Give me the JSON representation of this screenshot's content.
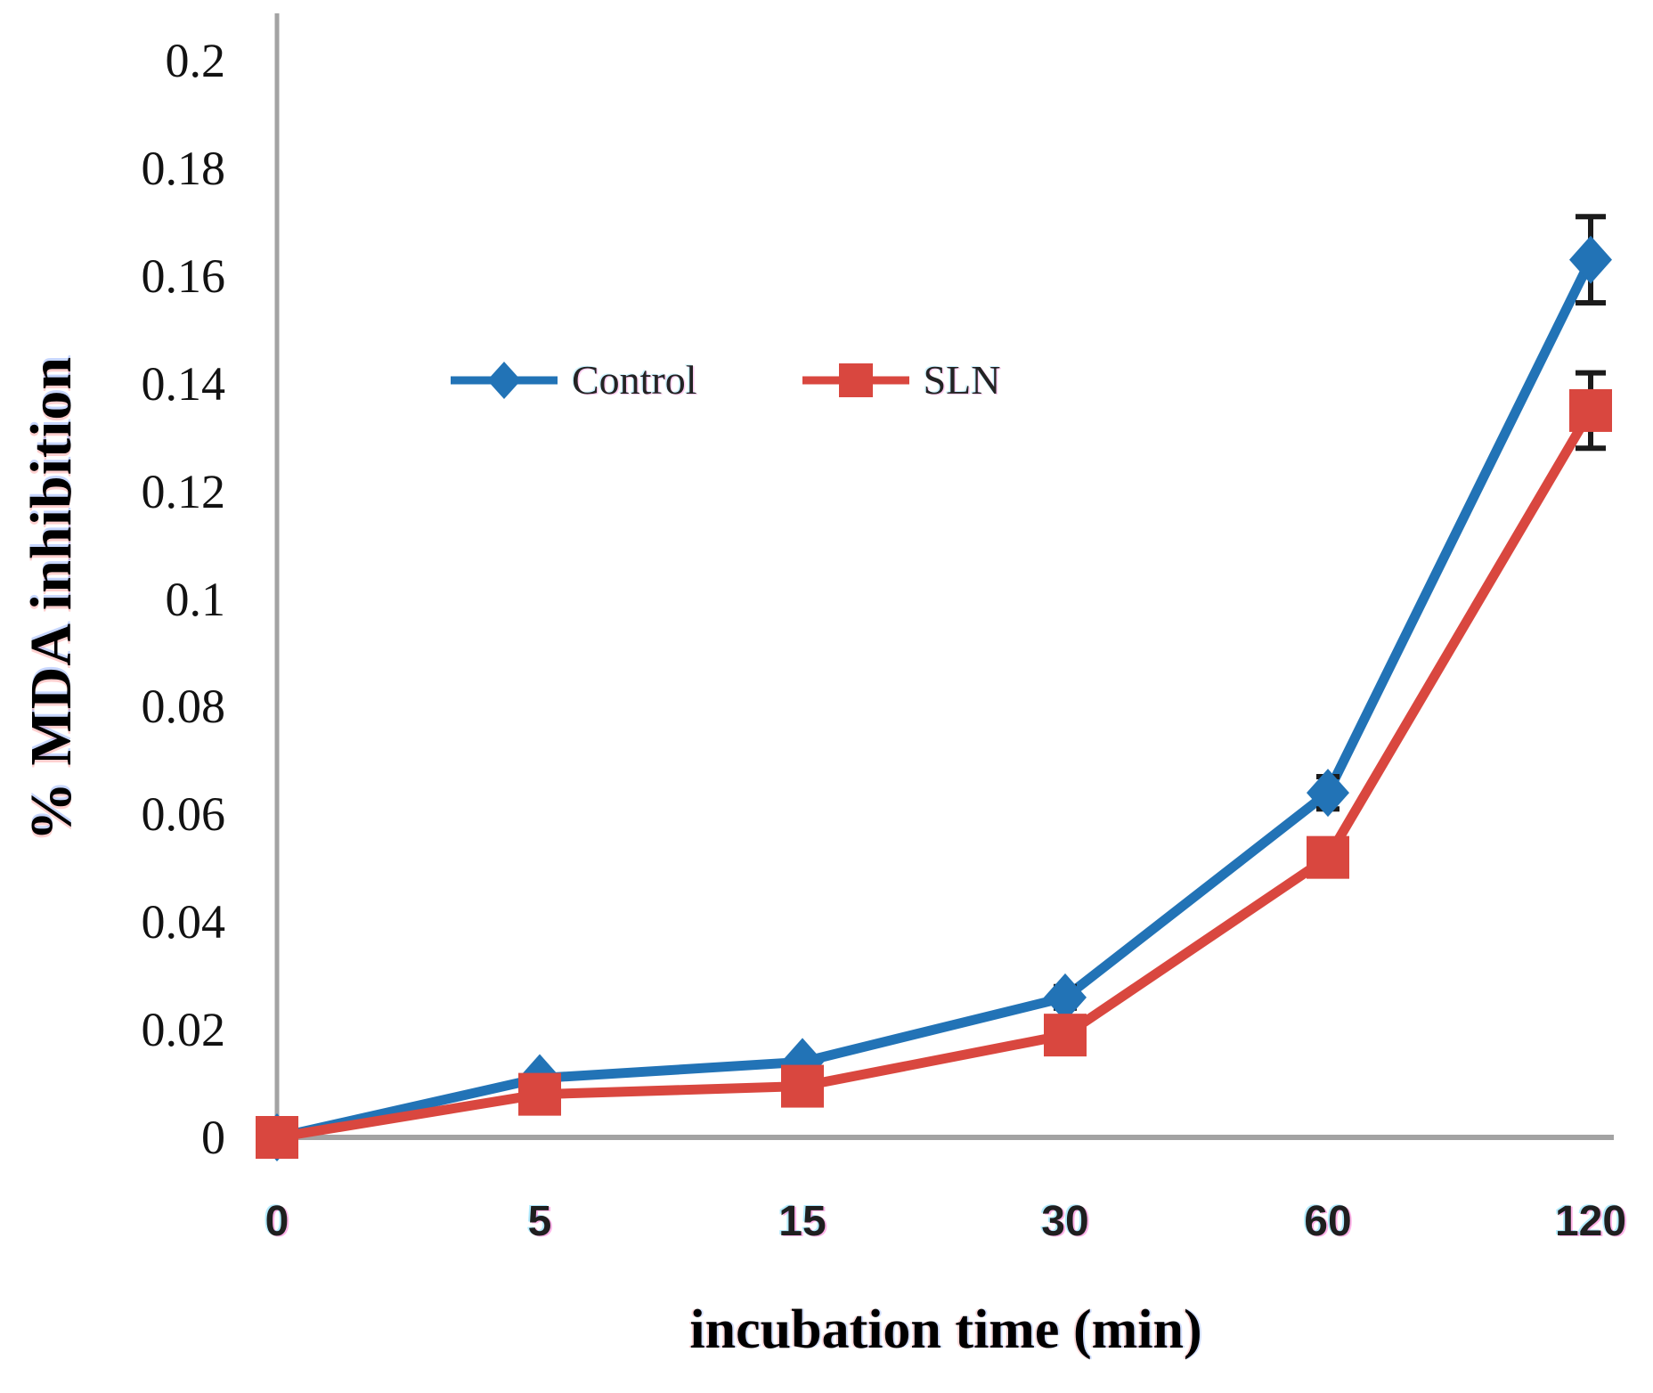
{
  "figure": {
    "background": "#ffffff"
  },
  "chart_data": {
    "type": "line",
    "title": "",
    "xlabel": "incubation time (min)",
    "ylabel": "% MDA inhibition",
    "categories": [
      0,
      5,
      15,
      30,
      60,
      120
    ],
    "x_tick_labels": [
      "0",
      "5",
      "15",
      "30",
      "60",
      "120"
    ],
    "y_ticks": [
      0,
      0.02,
      0.04,
      0.06,
      0.08,
      0.1,
      0.12,
      0.14,
      0.16,
      0.18,
      0.2
    ],
    "y_tick_labels": [
      "0",
      "0.02",
      "0.04",
      "0.06",
      "0.08",
      "0.1",
      "0.12",
      "0.14",
      "0.16",
      "0.18",
      "0.2"
    ],
    "ylim": [
      0,
      0.2
    ],
    "grid": false,
    "legend_position": "inside-top-left",
    "axis_color": "#a3a3a3",
    "error_bar_color": "#1b1b1b",
    "series": [
      {
        "name": "Control",
        "marker": "diamond",
        "color": "#2273b6",
        "values": [
          0,
          0.011,
          0.014,
          0.026,
          0.064,
          0.163
        ],
        "errors": [
          null,
          null,
          null,
          0.002,
          0.003,
          0.008
        ]
      },
      {
        "name": "SLN",
        "marker": "square",
        "color": "#d9473f",
        "values": [
          0,
          0.008,
          0.0095,
          0.019,
          0.052,
          0.135
        ],
        "errors": [
          null,
          null,
          null,
          null,
          null,
          0.007
        ]
      }
    ]
  },
  "legend": {
    "items": [
      {
        "label": "Control"
      },
      {
        "label": "SLN"
      }
    ]
  }
}
